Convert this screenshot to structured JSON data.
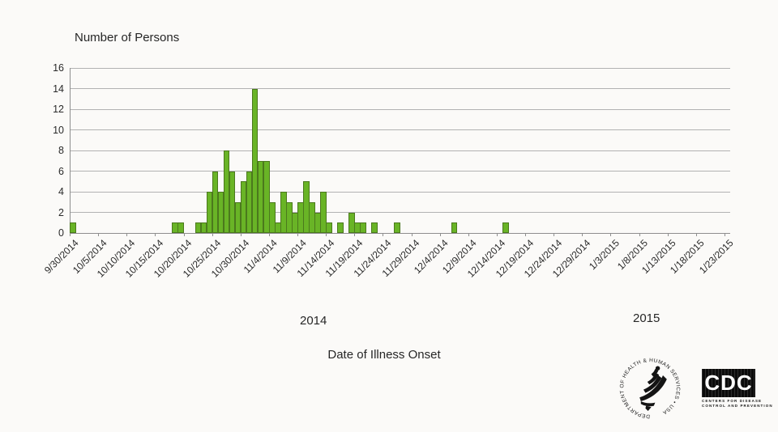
{
  "chart_data": {
    "type": "bar",
    "title": "Number of Persons",
    "xlabel": "Date of Illness Onset",
    "ylabel": "Number of Persons",
    "ylim": [
      0,
      16
    ],
    "y_ticks": [
      0,
      2,
      4,
      6,
      8,
      10,
      12,
      14,
      16
    ],
    "grid": "horizontal",
    "x_start_date": "9/30/2014",
    "x_total_day_slots": 116,
    "x_tick_interval_days": 5,
    "x_tick_labels": [
      "9/30/2014",
      "10/5/2014",
      "10/10/2014",
      "10/15/2014",
      "10/20/2014",
      "10/25/2014",
      "10/30/2014",
      "11/4/2014",
      "11/9/2014",
      "11/14/2014",
      "11/19/2014",
      "11/24/2014",
      "11/29/2014",
      "12/4/2014",
      "12/9/2014",
      "12/14/2014",
      "12/19/2014",
      "12/24/2014",
      "12/29/2014",
      "1/3/2015",
      "1/8/2015",
      "1/13/2015",
      "1/18/2015",
      "1/23/2015"
    ],
    "year_labels": [
      "2014",
      "2015"
    ],
    "bar_color": "#69b426",
    "bar_border_color": "#4b791d",
    "points": [
      {
        "date": "9/30/2014",
        "count": 1
      },
      {
        "date": "10/18/2014",
        "count": 1
      },
      {
        "date": "10/19/2014",
        "count": 1
      },
      {
        "date": "10/22/2014",
        "count": 1
      },
      {
        "date": "10/23/2014",
        "count": 1
      },
      {
        "date": "10/24/2014",
        "count": 4
      },
      {
        "date": "10/25/2014",
        "count": 6
      },
      {
        "date": "10/26/2014",
        "count": 4
      },
      {
        "date": "10/27/2014",
        "count": 8
      },
      {
        "date": "10/28/2014",
        "count": 6
      },
      {
        "date": "10/29/2014",
        "count": 3
      },
      {
        "date": "10/30/2014",
        "count": 5
      },
      {
        "date": "10/31/2014",
        "count": 6
      },
      {
        "date": "11/1/2014",
        "count": 14
      },
      {
        "date": "11/2/2014",
        "count": 7
      },
      {
        "date": "11/3/2014",
        "count": 7
      },
      {
        "date": "11/4/2014",
        "count": 3
      },
      {
        "date": "11/5/2014",
        "count": 1
      },
      {
        "date": "11/6/2014",
        "count": 4
      },
      {
        "date": "11/7/2014",
        "count": 3
      },
      {
        "date": "11/8/2014",
        "count": 2
      },
      {
        "date": "11/9/2014",
        "count": 3
      },
      {
        "date": "11/10/2014",
        "count": 5
      },
      {
        "date": "11/11/2014",
        "count": 3
      },
      {
        "date": "11/12/2014",
        "count": 2
      },
      {
        "date": "11/13/2014",
        "count": 4
      },
      {
        "date": "11/14/2014",
        "count": 1
      },
      {
        "date": "11/16/2014",
        "count": 1
      },
      {
        "date": "11/18/2014",
        "count": 2
      },
      {
        "date": "11/19/2014",
        "count": 1
      },
      {
        "date": "11/20/2014",
        "count": 1
      },
      {
        "date": "11/22/2014",
        "count": 1
      },
      {
        "date": "11/26/2014",
        "count": 1
      },
      {
        "date": "12/6/2014",
        "count": 1
      },
      {
        "date": "12/15/2014",
        "count": 1
      }
    ]
  },
  "footer": {
    "hhs_seal_ring_text": "DEPARTMENT OF HEALTH & HUMAN SERVICES • USA",
    "cdc_logo_text": "CDC",
    "cdc_caption_line1": "Centers for Disease",
    "cdc_caption_line2": "Control and Prevention"
  }
}
